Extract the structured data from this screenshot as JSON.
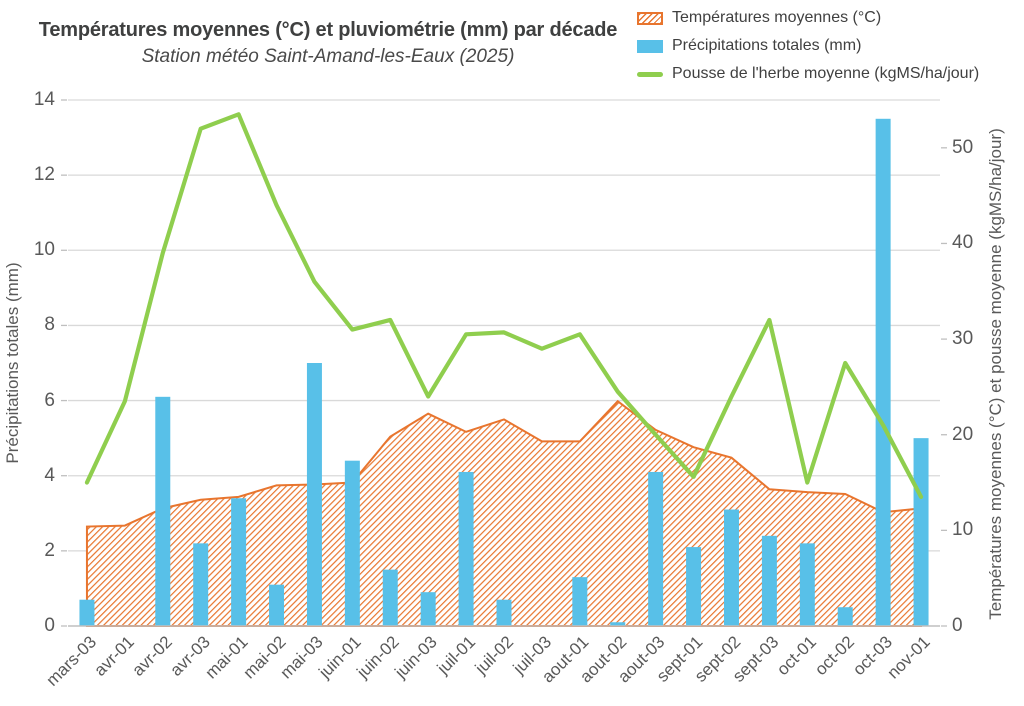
{
  "title": "Températures moyennes (°C) et pluviométrie (mm) par décade",
  "subtitle": "Station météo Saint-Amand-les-Eaux (2025)",
  "legend": [
    {
      "label": "Températures moyennes (°C)",
      "swatch": "hatched-area-swatch",
      "color": "#E8752E"
    },
    {
      "label": "Précipitations totales (mm)",
      "swatch": "bar-swatch",
      "color": "#58C0E8"
    },
    {
      "label": "Pousse de l'herbe moyenne (kgMS/ha/jour)",
      "swatch": "line-swatch",
      "color": "#8FCE4E"
    }
  ],
  "colors": {
    "orange": "#E8752E",
    "blue": "#58C0E8",
    "green": "#8FCE4E",
    "grid": "#D9D9D9",
    "axis_line": "#BFBFBF",
    "tick_text": "#595959",
    "title_text": "#3F4040"
  },
  "chart_data": {
    "type": "combo",
    "categories": [
      "mars-03",
      "avr-01",
      "avr-02",
      "avr-03",
      "mai-01",
      "mai-02",
      "mai-03",
      "juin-01",
      "juin-02",
      "juin-03",
      "juil-01",
      "juil-02",
      "juil-03",
      "aout-01",
      "aout-02",
      "aout-03",
      "sept-01",
      "sept-02",
      "sept-03",
      "oct-01",
      "oct-02",
      "oct-03",
      "nov-01"
    ],
    "series": [
      {
        "name": "Températures moyennes (°C)",
        "type": "area",
        "axis": "right",
        "fill": "hatch",
        "color": "#E8752E",
        "values": [
          10.4,
          10.5,
          12.3,
          13.2,
          13.5,
          14.7,
          14.8,
          15.0,
          19.8,
          22.2,
          20.3,
          21.6,
          19.3,
          19.3,
          23.5,
          20.5,
          18.7,
          17.6,
          14.3,
          14.0,
          13.8,
          11.9,
          12.3
        ]
      },
      {
        "name": "Précipitations totales (mm)",
        "type": "bar",
        "axis": "left",
        "color": "#58C0E8",
        "values": [
          0.7,
          0,
          6.1,
          2.2,
          3.4,
          1.1,
          7.0,
          4.4,
          1.5,
          0.9,
          4.1,
          0.7,
          0,
          1.3,
          0.1,
          4.1,
          2.1,
          3.1,
          2.4,
          2.2,
          0.5,
          13.5,
          5.0
        ]
      },
      {
        "name": "Pousse de l'herbe moyenne (kgMS/ha/jour)",
        "type": "line",
        "axis": "right",
        "color": "#8FCE4E",
        "values": [
          15,
          23.5,
          39,
          52,
          53.5,
          44,
          36,
          31,
          32,
          24,
          30.5,
          30.7,
          29,
          30.5,
          24.5,
          20,
          15.6,
          24,
          32,
          15,
          27.5,
          21,
          13.5
        ]
      }
    ],
    "left_axis": {
      "title": "Précipitations totales (mm)",
      "min": 0,
      "max": 14,
      "ticks": [
        0,
        2,
        4,
        6,
        8,
        10,
        12,
        14
      ]
    },
    "right_axis": {
      "title": "Températures moyennes (°C) et pousse moyenne (kgMS/ha/jour)",
      "min": 0,
      "max": 55,
      "ticks": [
        0,
        10,
        20,
        30,
        40,
        50
      ]
    },
    "grid": "horizontal",
    "legend_position": "top-right"
  }
}
